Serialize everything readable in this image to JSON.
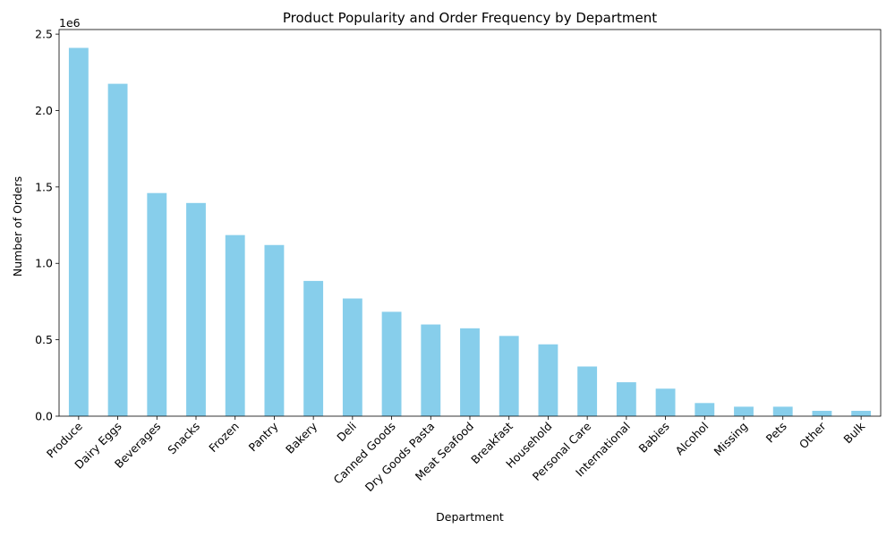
{
  "chart_data": {
    "type": "bar",
    "title": "Product Popularity and Order Frequency by Department",
    "xlabel": "Department",
    "ylabel": "Number of Orders",
    "offset_label": "1e6",
    "categories": [
      "Produce",
      "Dairy Eggs",
      "Beverages",
      "Snacks",
      "Frozen",
      "Pantry",
      "Bakery",
      "Deli",
      "Canned Goods",
      "Dry Goods Pasta",
      "Meat Seafood",
      "Breakfast",
      "Household",
      "Personal Care",
      "International",
      "Babies",
      "Alcohol",
      "Missing",
      "Pets",
      "Other",
      "Bulk"
    ],
    "values": [
      2410000,
      2175000,
      1460000,
      1395000,
      1185000,
      1120000,
      885000,
      770000,
      683000,
      600000,
      575000,
      525000,
      470000,
      325000,
      222000,
      180000,
      86000,
      62000,
      62000,
      35000,
      35000
    ],
    "yticks": [
      0,
      0.5,
      1.0,
      1.5,
      2.0,
      2.5
    ],
    "ytick_labels": [
      "0.0",
      "0.5",
      "1.0",
      "1.5",
      "2.0",
      "2.5"
    ],
    "ylim": [
      0,
      2530000
    ],
    "grid": false,
    "bar_color": "#87CEEB"
  }
}
